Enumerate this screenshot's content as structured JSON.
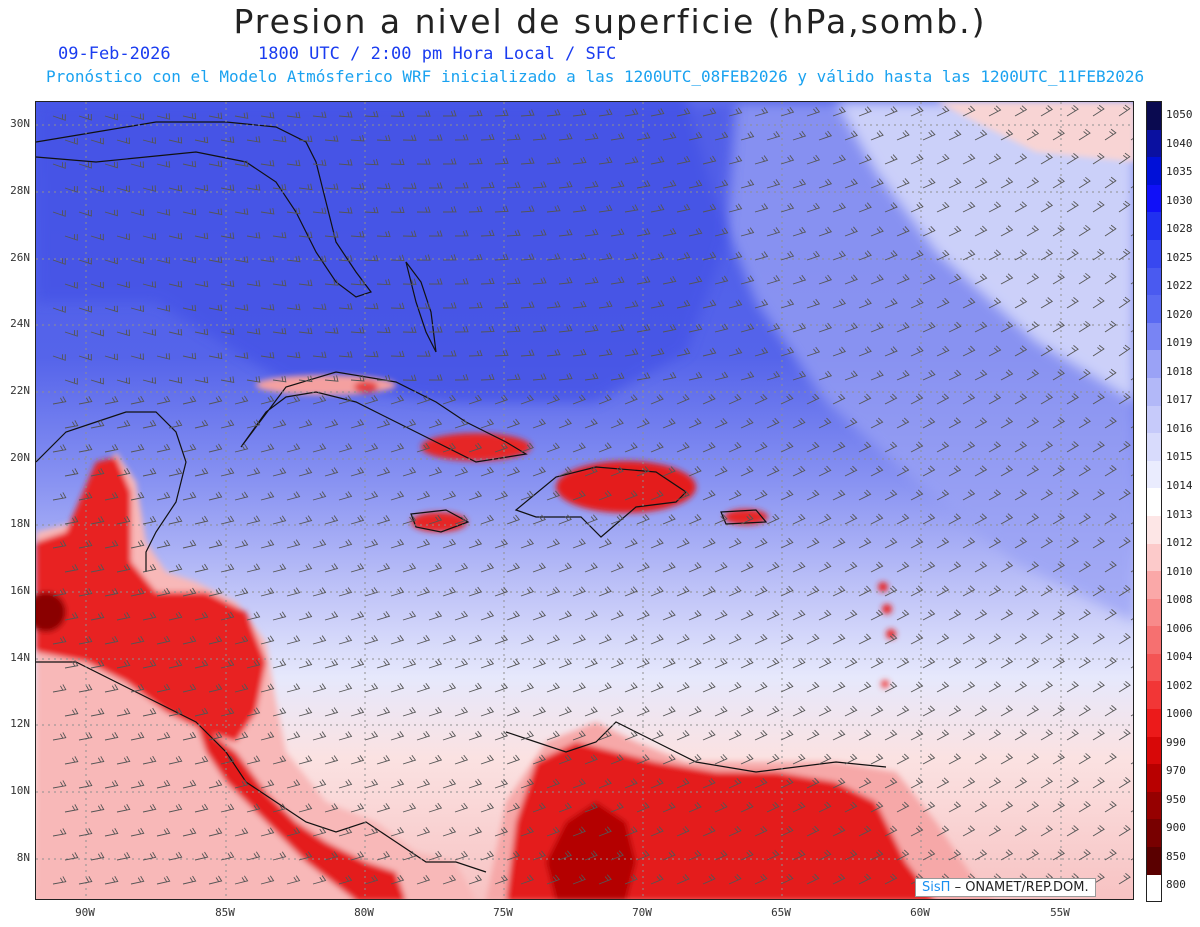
{
  "title": "Presion a nivel de superficie (hPa,somb.)",
  "subtitle_date": "09-Feb-2026",
  "subtitle_time": "1800 UTC / 2:00 pm Hora Local / SFC",
  "forecast_line": "Pronóstico con el Modelo Atmósferico WRF inicializado a las 1200UTC_08FEB2026 y válido hasta las  1200UTC_11FEB2026",
  "lat_labels": [
    "30N",
    "28N",
    "26N",
    "24N",
    "22N",
    "20N",
    "18N",
    "16N",
    "14N",
    "12N",
    "10N",
    "8N"
  ],
  "lon_labels": [
    "90W",
    "85W",
    "80W",
    "75W",
    "70W",
    "65W",
    "60W",
    "55W"
  ],
  "legend_levels": [
    "1050",
    "1040",
    "1035",
    "1030",
    "1028",
    "1025",
    "1022",
    "1020",
    "1019",
    "1018",
    "1017",
    "1016",
    "1015",
    "1014",
    "1013",
    "1012",
    "1010",
    "1008",
    "1006",
    "1004",
    "1002",
    "1000",
    "990",
    "970",
    "950",
    "900",
    "850",
    "800"
  ],
  "legend_colors": [
    "#0a0a50",
    "#0a10a0",
    "#0010d8",
    "#1010f8",
    "#2030f0",
    "#3848f0",
    "#4a5af0",
    "#5a6af2",
    "#7884f4",
    "#9aa2f6",
    "#b2b8f8",
    "#c6cafa",
    "#d8dbfc",
    "#eaecfe",
    "#ffffff",
    "#fde6e6",
    "#fccaca",
    "#faa8a8",
    "#f88a8a",
    "#f67070",
    "#f45454",
    "#f23636",
    "#ec1a1a",
    "#d80808",
    "#b80000",
    "#960000",
    "#780000",
    "#5a0000"
  ],
  "credit_brand": "SisΠ",
  "credit_text": "– ONAMET/REP.DOM."
}
